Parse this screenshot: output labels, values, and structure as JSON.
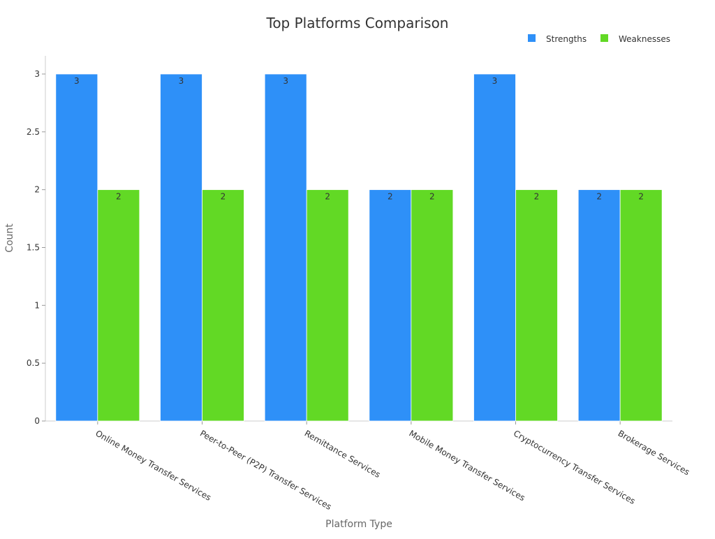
{
  "chart_data": {
    "type": "bar",
    "title": "Top Platforms Comparison",
    "xlabel": "Platform Type",
    "ylabel": "Count",
    "ylim": [
      0,
      3
    ],
    "yticks": [
      "0",
      "0.5",
      "1",
      "1.5",
      "2",
      "2.5",
      "3"
    ],
    "grid": false,
    "legend_placement": "top-right",
    "categories": [
      "Online Money Transfer Services",
      "Peer-to-Peer (P2P) Transfer Services",
      "Remittance Services",
      "Mobile Money Transfer Services",
      "Cryptocurrency Transfer Services",
      "Brokerage Services"
    ],
    "series": [
      {
        "name": "Strengths",
        "color": "#2e90f8",
        "values": [
          3,
          3,
          3,
          2,
          3,
          2
        ]
      },
      {
        "name": "Weaknesses",
        "color": "#62d925",
        "values": [
          2,
          2,
          2,
          2,
          2,
          2
        ]
      }
    ]
  }
}
